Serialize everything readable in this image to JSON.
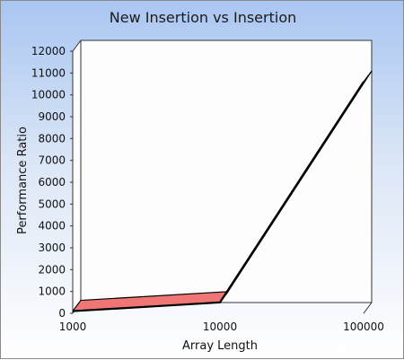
{
  "chart_data": {
    "type": "line",
    "title": "New Insertion vs Insertion",
    "xlabel": "Array Length",
    "ylabel": "Performance Ratio",
    "x_categories": [
      "1000",
      "10000",
      "100000"
    ],
    "series": [
      {
        "values": [
          100,
          500,
          10600
        ]
      }
    ],
    "ylim": [
      0,
      12000
    ],
    "y_ticks": [
      "0",
      "1000",
      "2000",
      "3000",
      "4000",
      "5000",
      "6000",
      "7000",
      "8000",
      "9000",
      "10000",
      "11000",
      "12000"
    ],
    "grid": false,
    "legend": "none",
    "colors": {
      "ribbon_fill": "#f07575",
      "ribbon_edge": "#000000",
      "depth_face": "#fdfdfd",
      "frame": "#333333"
    }
  }
}
